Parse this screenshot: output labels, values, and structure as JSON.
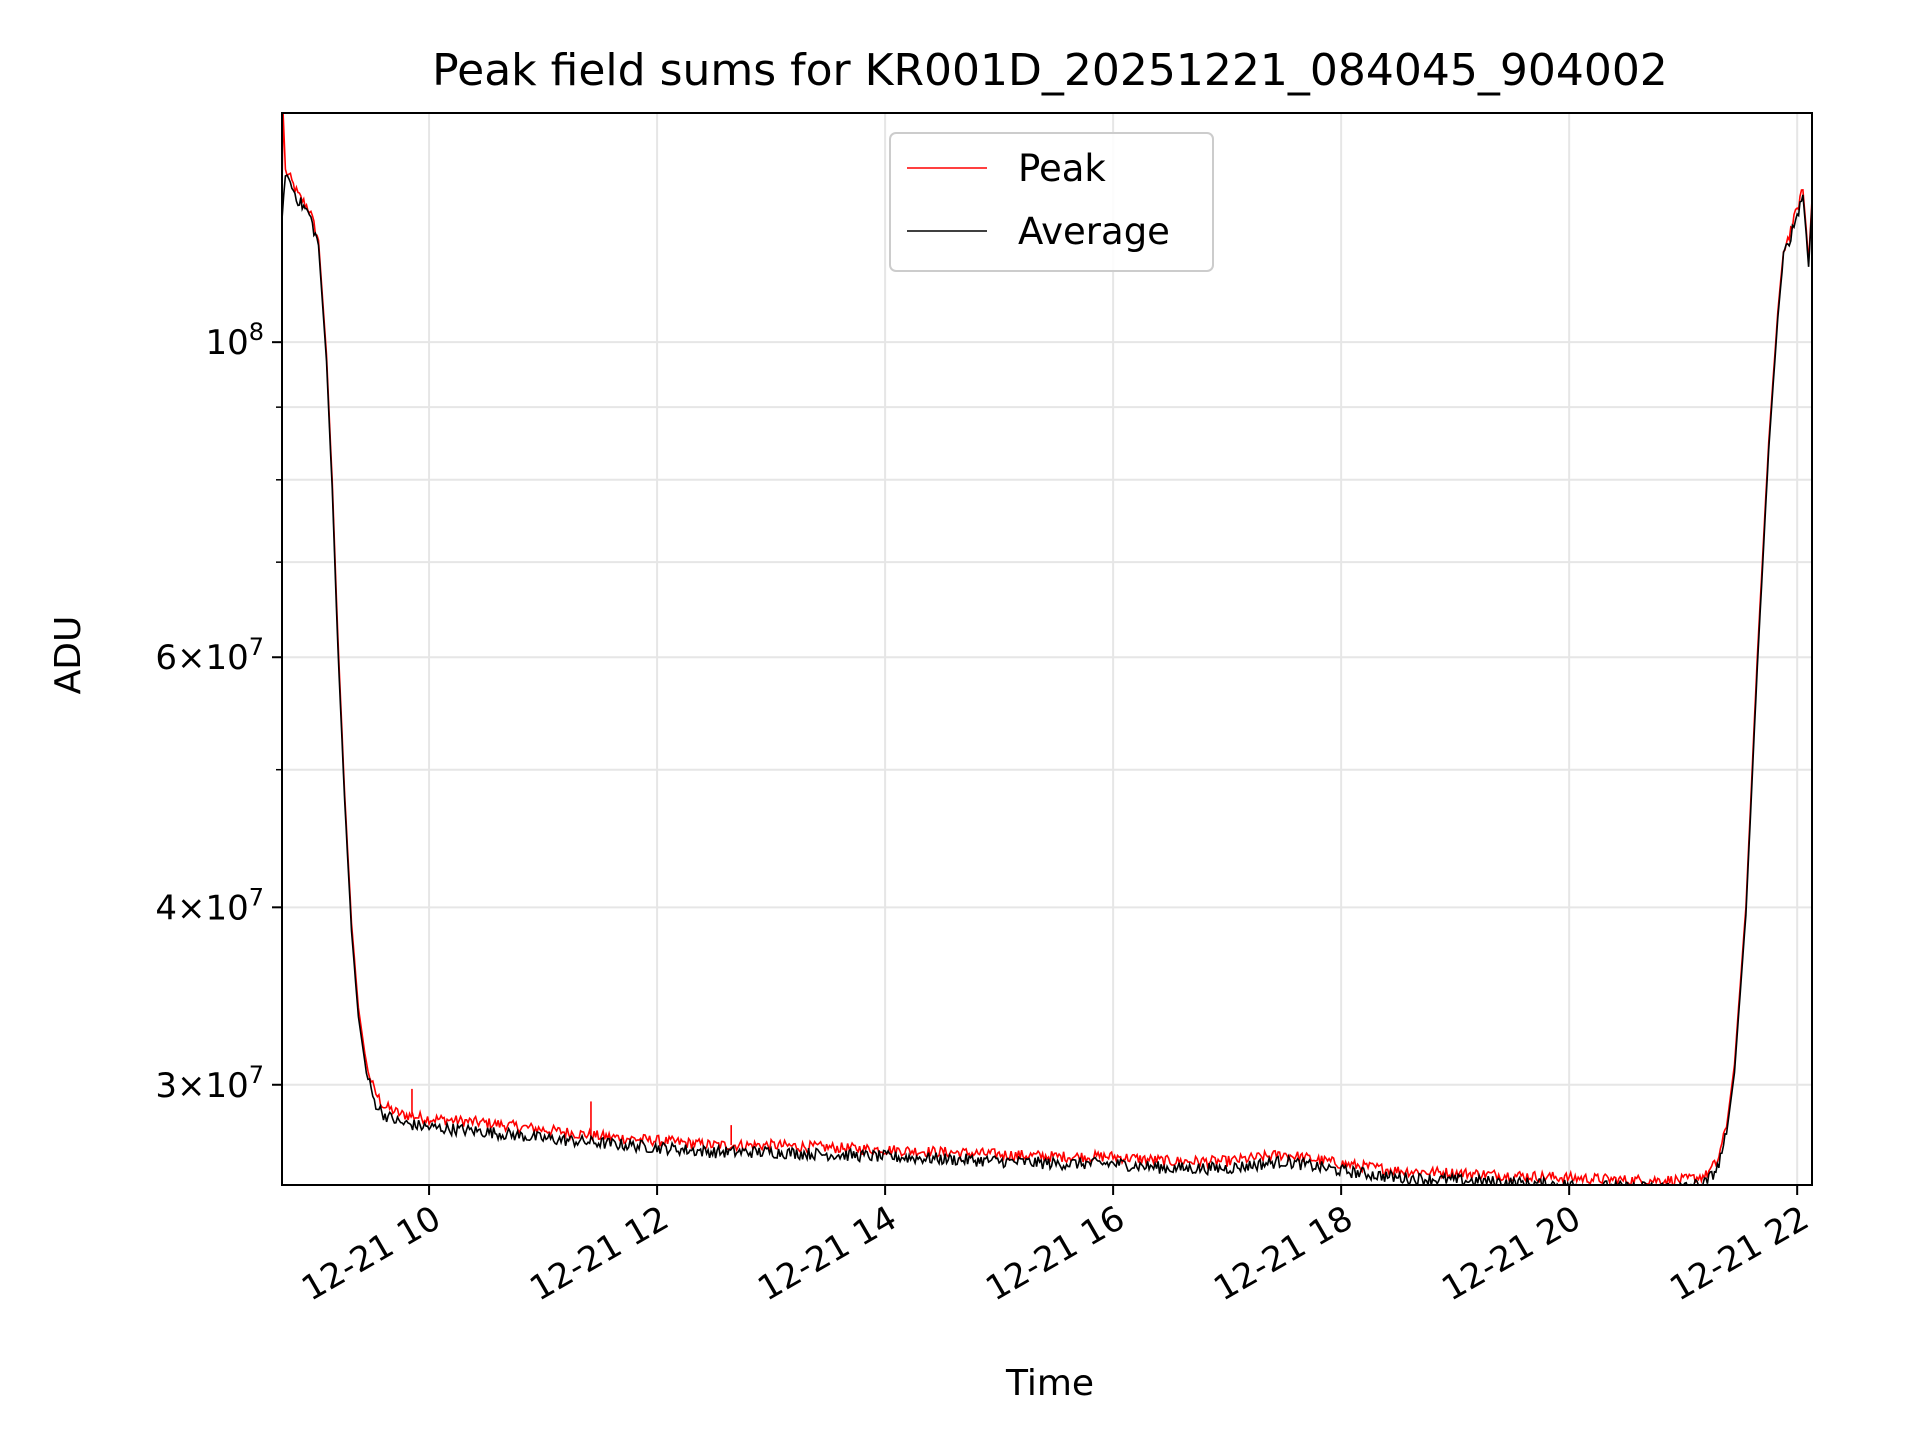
{
  "chart_data": {
    "type": "line",
    "title": "Peak field sums for KR001D_20251221_084045_904002",
    "xlabel": "Time",
    "ylabel": "ADU",
    "yscale": "log",
    "xlim_hours": [
      8.71,
      22.13
    ],
    "ylim": [
      25500000,
      145000000
    ],
    "grid": true,
    "legend_position": "upper-center",
    "x_ticks": [
      {
        "label": "12-21 10",
        "hour": 10
      },
      {
        "label": "12-21 12",
        "hour": 12
      },
      {
        "label": "12-21 14",
        "hour": 14
      },
      {
        "label": "12-21 16",
        "hour": 16
      },
      {
        "label": "12-21 18",
        "hour": 18
      },
      {
        "label": "12-21 20",
        "hour": 20
      },
      {
        "label": "12-21 22",
        "hour": 22
      }
    ],
    "y_ticks": [
      {
        "base": "3",
        "exp": "7",
        "value": 30000000
      },
      {
        "base": "4",
        "exp": "7",
        "value": 40000000
      },
      {
        "base": "6",
        "exp": "7",
        "value": 60000000
      },
      {
        "base": "",
        "exp": "8",
        "value": 100000000
      }
    ],
    "y_minor_values": [
      50000000,
      70000000,
      80000000,
      90000000
    ],
    "series": [
      {
        "name": "Peak",
        "color": "#ff0000",
        "points": [
          [
            8.71,
            128000000
          ],
          [
            8.72,
            145000000
          ],
          [
            8.74,
            132000000
          ],
          [
            8.77,
            131000000
          ],
          [
            8.85,
            127000000
          ],
          [
            8.95,
            124000000
          ],
          [
            9.03,
            118000000
          ],
          [
            9.1,
            98000000
          ],
          [
            9.15,
            80000000
          ],
          [
            9.2,
            62000000
          ],
          [
            9.26,
            48000000
          ],
          [
            9.32,
            39000000
          ],
          [
            9.38,
            34000000
          ],
          [
            9.45,
            31000000
          ],
          [
            9.52,
            29700000
          ],
          [
            9.6,
            29000000
          ],
          [
            9.75,
            28600000
          ],
          [
            10.0,
            28400000
          ],
          [
            10.5,
            28200000
          ],
          [
            11.0,
            27900000
          ],
          [
            11.5,
            27600000
          ],
          [
            12.0,
            27400000
          ],
          [
            12.5,
            27200000
          ],
          [
            13.0,
            27200000
          ],
          [
            13.5,
            27100000
          ],
          [
            14.0,
            27000000
          ],
          [
            14.5,
            26900000
          ],
          [
            15.0,
            26800000
          ],
          [
            15.5,
            26700000
          ],
          [
            16.0,
            26700000
          ],
          [
            16.5,
            26500000
          ],
          [
            17.0,
            26500000
          ],
          [
            17.5,
            26800000
          ],
          [
            18.0,
            26400000
          ],
          [
            18.5,
            26100000
          ],
          [
            19.0,
            26000000
          ],
          [
            19.5,
            25900000
          ],
          [
            20.0,
            25800000
          ],
          [
            20.5,
            25700000
          ],
          [
            21.0,
            25700000
          ],
          [
            21.2,
            25900000
          ],
          [
            21.3,
            26500000
          ],
          [
            21.38,
            28000000
          ],
          [
            21.45,
            31000000
          ],
          [
            21.55,
            40000000
          ],
          [
            21.65,
            60000000
          ],
          [
            21.75,
            85000000
          ],
          [
            21.83,
            105000000
          ],
          [
            21.88,
            116000000
          ],
          [
            21.93,
            119000000
          ],
          [
            22.0,
            124000000
          ],
          [
            22.05,
            128000000
          ],
          [
            22.08,
            120000000
          ],
          [
            22.1,
            114000000
          ],
          [
            22.13,
            126000000
          ]
        ],
        "spikes": [
          [
            9.85,
            29800000
          ],
          [
            11.42,
            29200000
          ],
          [
            12.65,
            28100000
          ],
          [
            17.4,
            26900000
          ]
        ]
      },
      {
        "name": "Average",
        "color": "#000000",
        "points": [
          [
            8.71,
            122000000
          ],
          [
            8.74,
            132000000
          ],
          [
            8.77,
            130000000
          ],
          [
            8.85,
            126000000
          ],
          [
            8.95,
            123000000
          ],
          [
            9.03,
            117000000
          ],
          [
            9.1,
            97000000
          ],
          [
            9.15,
            79000000
          ],
          [
            9.2,
            61000000
          ],
          [
            9.26,
            47500000
          ],
          [
            9.32,
            38500000
          ],
          [
            9.38,
            33500000
          ],
          [
            9.45,
            30600000
          ],
          [
            9.52,
            29200000
          ],
          [
            9.6,
            28600000
          ],
          [
            9.75,
            28200000
          ],
          [
            10.0,
            28000000
          ],
          [
            10.5,
            27800000
          ],
          [
            11.0,
            27500000
          ],
          [
            11.5,
            27300000
          ],
          [
            12.0,
            27100000
          ],
          [
            12.5,
            26900000
          ],
          [
            13.0,
            26900000
          ],
          [
            13.5,
            26800000
          ],
          [
            14.0,
            26700000
          ],
          [
            14.5,
            26600000
          ],
          [
            15.0,
            26500000
          ],
          [
            15.5,
            26400000
          ],
          [
            16.0,
            26400000
          ],
          [
            16.5,
            26200000
          ],
          [
            17.0,
            26200000
          ],
          [
            17.5,
            26500000
          ],
          [
            18.0,
            26100000
          ],
          [
            18.5,
            25800000
          ],
          [
            19.0,
            25700000
          ],
          [
            19.5,
            25600000
          ],
          [
            20.0,
            25500000
          ],
          [
            20.5,
            25400000
          ],
          [
            21.0,
            25400000
          ],
          [
            21.2,
            25600000
          ],
          [
            21.3,
            26200000
          ],
          [
            21.38,
            27700000
          ],
          [
            21.45,
            30600000
          ],
          [
            21.55,
            39500000
          ],
          [
            21.65,
            59000000
          ],
          [
            21.75,
            84000000
          ],
          [
            21.83,
            104000000
          ],
          [
            21.88,
            115000000
          ],
          [
            21.93,
            118000000
          ],
          [
            22.0,
            123000000
          ],
          [
            22.05,
            127000000
          ],
          [
            22.08,
            119000000
          ],
          [
            22.1,
            113000000
          ],
          [
            22.13,
            125000000
          ]
        ]
      }
    ]
  }
}
